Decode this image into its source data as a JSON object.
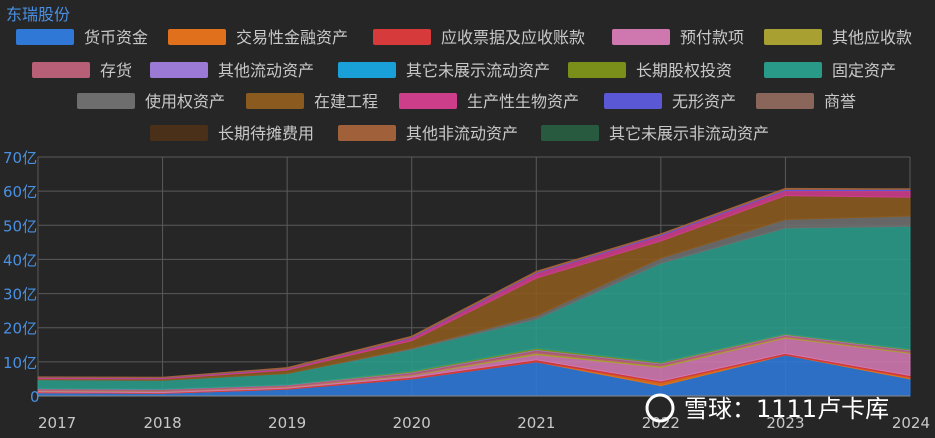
{
  "chart_data": {
    "type": "area",
    "stacked": true,
    "title": "东瑞股份",
    "x": [
      "2017",
      "2018",
      "2019",
      "2020",
      "2021",
      "2022",
      "2023",
      "2024"
    ],
    "y_ticks": [
      "0",
      "10亿",
      "20亿",
      "30亿",
      "40亿",
      "50亿",
      "60亿",
      "70亿"
    ],
    "ylim": [
      0,
      70
    ],
    "unit": "亿",
    "grid": true,
    "legend_position": "top",
    "series": [
      {
        "name": "货币资金",
        "color": "#2f78d6",
        "values": [
          1.0,
          0.8,
          2.0,
          5.0,
          10.0,
          3.0,
          12.0,
          5.0
        ]
      },
      {
        "name": "交易性金融资产",
        "color": "#e0701b",
        "values": [
          0,
          0,
          0,
          0,
          0,
          1.0,
          0,
          0.5
        ]
      },
      {
        "name": "应收票据及应收账款",
        "color": "#d63a3a",
        "values": [
          0.2,
          0.2,
          0.3,
          0.5,
          0.6,
          0.4,
          0.5,
          0.5
        ]
      },
      {
        "name": "预付款项",
        "color": "#cf78b0",
        "values": [
          0.3,
          0.3,
          0.3,
          0.5,
          1.5,
          4.0,
          4.5,
          6.5
        ]
      },
      {
        "name": "其他应收款",
        "color": "#a8a030",
        "values": [
          0.1,
          0.1,
          0.1,
          0.2,
          0.5,
          0.4,
          0.3,
          0.3
        ]
      },
      {
        "name": "存货",
        "color": "#b85f78",
        "values": [
          0.5,
          0.5,
          0.5,
          0.6,
          0.8,
          0.6,
          0.5,
          0.5
        ]
      },
      {
        "name": "其他流动资产",
        "color": "#9a7ad4",
        "values": [
          0.1,
          0.1,
          0.1,
          0.2,
          0.2,
          0.2,
          0.2,
          0.2
        ]
      },
      {
        "name": "其它未展示流动资产",
        "color": "#1aa0d8",
        "values": [
          0,
          0,
          0,
          0,
          0,
          0,
          0,
          0
        ]
      },
      {
        "name": "长期股权投资",
        "color": "#7a8f1a",
        "values": [
          0,
          0,
          0,
          0.3,
          0.4,
          0.3,
          0.2,
          0.2
        ]
      },
      {
        "name": "固定资产",
        "color": "#2a9a88",
        "values": [
          2.6,
          2.6,
          3.3,
          6.4,
          8.5,
          29.0,
          31.0,
          36.0
        ]
      },
      {
        "name": "使用权资产",
        "color": "#6e6e6e",
        "values": [
          0,
          0,
          0,
          0.3,
          1.0,
          1.5,
          2.5,
          3.0
        ]
      },
      {
        "name": "在建工程",
        "color": "#8b5a1e",
        "values": [
          0.3,
          0.4,
          1.0,
          2.2,
          11.0,
          5.0,
          7.0,
          5.5
        ]
      },
      {
        "name": "生产性生物资产",
        "color": "#cc3d8a",
        "values": [
          0.3,
          0.3,
          0.4,
          0.8,
          1.5,
          1.6,
          1.5,
          2.0
        ]
      },
      {
        "name": "无形资产",
        "color": "#5b58d6",
        "values": [
          0.1,
          0.1,
          0.1,
          0.2,
          0.2,
          0.3,
          0.3,
          0.3
        ]
      },
      {
        "name": "商誉",
        "color": "#8a665a",
        "values": [
          0,
          0,
          0,
          0,
          0,
          0,
          0,
          0
        ]
      },
      {
        "name": "长期待摊费用",
        "color": "#4a3018",
        "values": [
          0,
          0,
          0,
          0,
          0,
          0,
          0,
          0
        ]
      },
      {
        "name": "其他非流动资产",
        "color": "#a0603a",
        "values": [
          0.1,
          0.1,
          0.2,
          0.3,
          0.3,
          0.2,
          0.3,
          0.2
        ]
      },
      {
        "name": "其它未展示非流动资产",
        "color": "#285a40",
        "values": [
          0,
          0,
          0,
          0,
          0,
          0,
          0,
          0
        ]
      }
    ]
  },
  "watermark": "雪球：1111卢卡库"
}
